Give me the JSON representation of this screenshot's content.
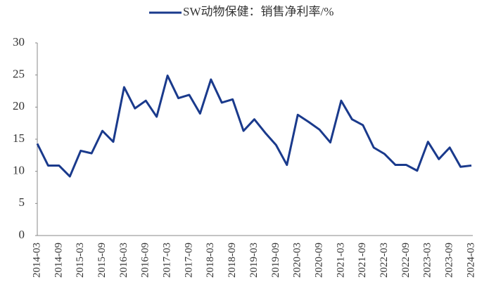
{
  "chart_data": {
    "type": "line",
    "categories": [
      "2014-03",
      null,
      "2014-09",
      null,
      "2015-03",
      null,
      "2015-09",
      null,
      "2016-03",
      null,
      "2016-09",
      null,
      "2017-03",
      null,
      "2017-09",
      null,
      "2018-03",
      null,
      "2018-09",
      null,
      "2019-03",
      null,
      "2019-09",
      null,
      "2020-03",
      null,
      "2020-09",
      null,
      "2021-03",
      null,
      "2021-09",
      null,
      "2022-03",
      null,
      "2022-09",
      null,
      "2023-03",
      null,
      "2023-09",
      null,
      "2024-03"
    ],
    "series": [
      {
        "name": "SW动物保健：销售净利率/%",
        "color": "#1a3a8c",
        "values": [
          14.3,
          10.9,
          10.9,
          9.2,
          13.2,
          12.8,
          16.3,
          14.6,
          23.1,
          19.8,
          21.0,
          18.5,
          24.9,
          21.4,
          21.9,
          19.0,
          24.3,
          20.7,
          21.2,
          16.3,
          18.1,
          16.0,
          14.1,
          11.0,
          18.8,
          17.7,
          16.5,
          14.5,
          21.0,
          18.1,
          17.2,
          13.7,
          12.7,
          11.0,
          11.0,
          10.1,
          14.6,
          11.9,
          13.7,
          10.7,
          10.9
        ]
      }
    ],
    "ylim": [
      0,
      30
    ],
    "yticks": [
      0,
      5,
      10,
      15,
      20,
      25,
      30
    ],
    "grid": false,
    "legend": "top"
  }
}
